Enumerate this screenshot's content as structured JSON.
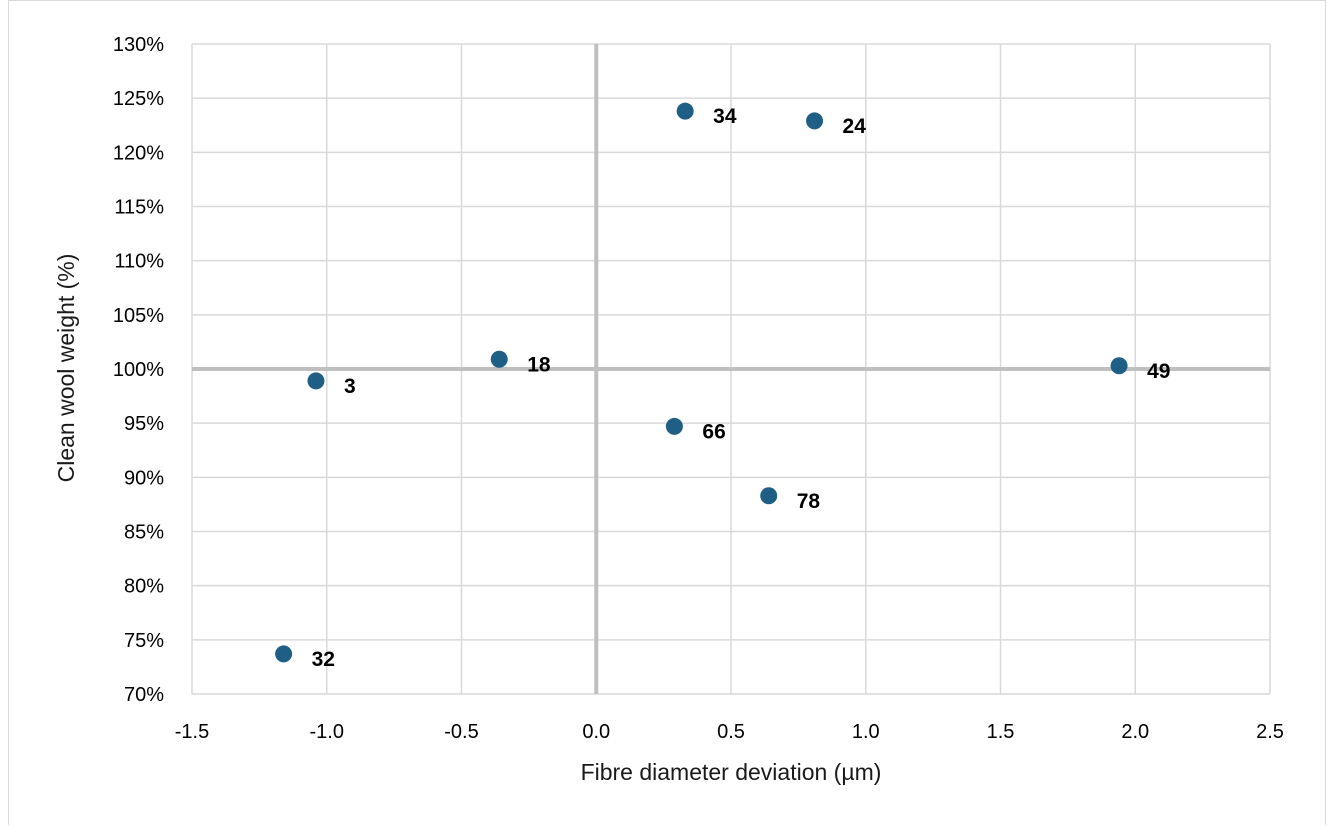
{
  "chart_data": {
    "type": "scatter",
    "title": "",
    "xlabel": "Fibre diameter deviation (µm)",
    "ylabel": "Clean wool weight (%)",
    "xlim": [
      -1.5,
      2.5
    ],
    "ylim": [
      70,
      130
    ],
    "x_ticks": [
      -1.5,
      -1.0,
      -0.5,
      0.0,
      0.5,
      1.0,
      1.5,
      2.0,
      2.5
    ],
    "x_tick_labels": [
      "-1.5",
      "-1.0",
      "-0.5",
      "0.0",
      "0.5",
      "1.0",
      "1.5",
      "2.0",
      "2.5"
    ],
    "y_ticks": [
      70,
      75,
      80,
      85,
      90,
      95,
      100,
      105,
      110,
      115,
      120,
      125,
      130
    ],
    "y_tick_labels": [
      "70%",
      "75%",
      "80%",
      "85%",
      "90%",
      "95%",
      "100%",
      "105%",
      "110%",
      "115%",
      "120%",
      "125%",
      "130%"
    ],
    "grid": true,
    "reference_lines": {
      "x": 0.0,
      "y": 100
    },
    "marker_color": "#1f5f86",
    "grid_color": "#d9d9d9",
    "reference_color": "#bfbfbf",
    "points": [
      {
        "label": "34",
        "x": 0.33,
        "y": 123.8
      },
      {
        "label": "24",
        "x": 0.81,
        "y": 122.9
      },
      {
        "label": "18",
        "x": -0.36,
        "y": 100.9
      },
      {
        "label": "3",
        "x": -1.04,
        "y": 98.9
      },
      {
        "label": "49",
        "x": 1.94,
        "y": 100.3
      },
      {
        "label": "66",
        "x": 0.29,
        "y": 94.7
      },
      {
        "label": "78",
        "x": 0.64,
        "y": 88.3
      },
      {
        "label": "32",
        "x": -1.16,
        "y": 73.7
      }
    ]
  }
}
